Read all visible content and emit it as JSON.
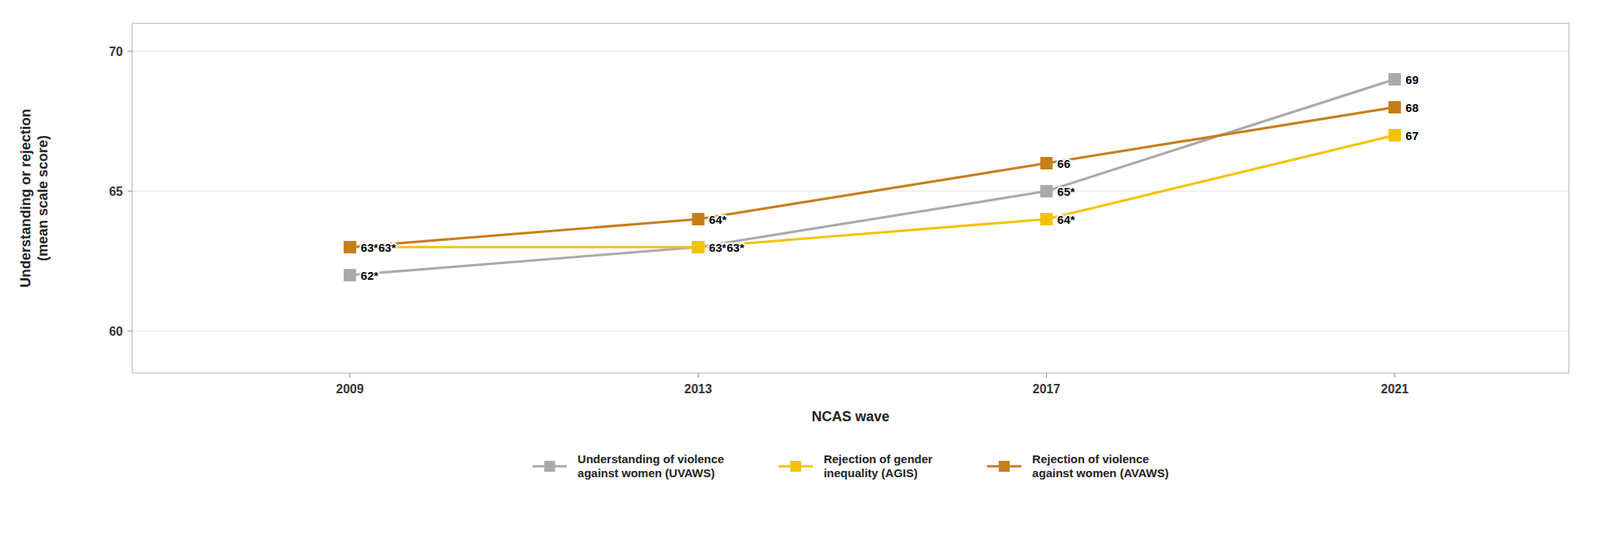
{
  "chart_data": {
    "type": "line",
    "x": [
      2009,
      2013,
      2017,
      2021
    ],
    "xlabel": "NCAS wave",
    "ylabel": "Understanding or rejection\n(mean scale score)",
    "xlim": [
      2006.5,
      2023.0
    ],
    "xticks": [
      2009,
      2013,
      2017,
      2021
    ],
    "ylim": [
      58.5,
      71.0
    ],
    "yticks": [
      60,
      65,
      70
    ],
    "grid": true,
    "legend": "bottom",
    "data_labels": true,
    "marker": "square",
    "series": [
      {
        "name": "Understanding of violence\nagainst women (UVAWS)",
        "color": "#aaaaaa",
        "values": [
          62,
          63,
          65,
          69
        ],
        "value_labels": [
          "62*",
          "63*",
          "65*",
          "69"
        ]
      },
      {
        "name": "Rejection of gender\ninequality (AGIS)",
        "color": "#f5c200",
        "values": [
          63,
          63,
          64,
          67
        ],
        "value_labels": [
          "63*",
          "63*",
          "64*",
          "67"
        ]
      },
      {
        "name": "Rejection of violence\nagainst women (AVAWS)",
        "color": "#c87d1a",
        "values": [
          63,
          64,
          66,
          68
        ],
        "value_labels": [
          "63*",
          "64*",
          "66",
          "68"
        ]
      }
    ]
  }
}
